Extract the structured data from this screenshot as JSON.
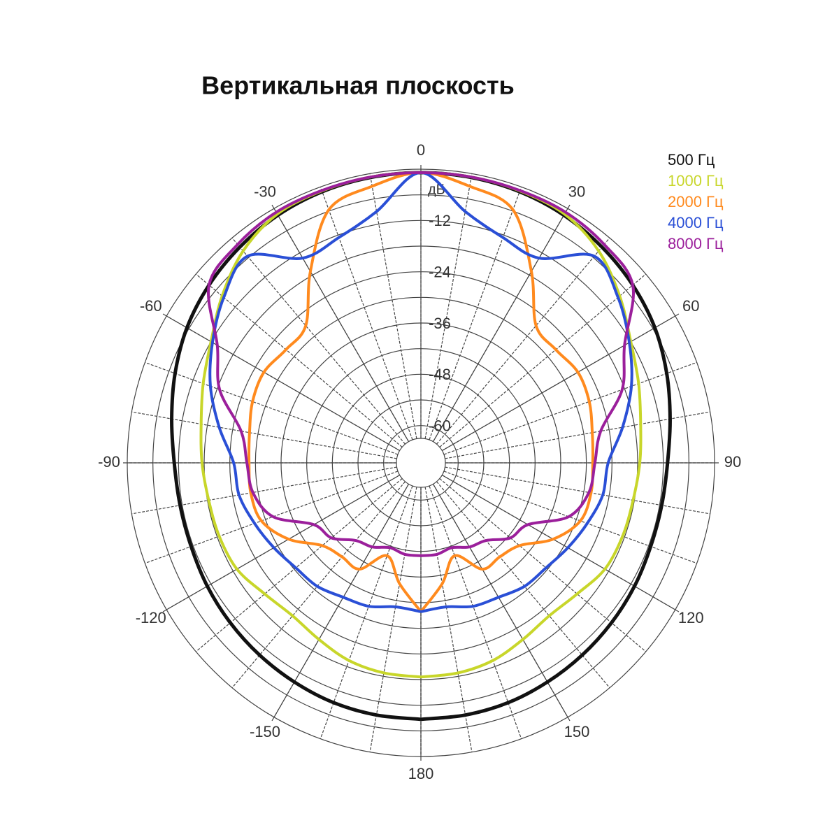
{
  "chart_data": {
    "type": "polar",
    "title": "Вертикальная плоскость",
    "r_unit": "дБ",
    "rlim": [
      -63,
      0
    ],
    "rticks": [
      -60,
      -48,
      -36,
      -24,
      -12
    ],
    "rminor": [
      -54,
      -42,
      -30,
      -18,
      -6
    ],
    "thetaticks": [
      0,
      30,
      60,
      90,
      120,
      150,
      180,
      -150,
      -120,
      -90,
      -60,
      -30
    ],
    "theta": [
      -180,
      -170,
      -160,
      -150,
      -140,
      -130,
      -120,
      -110,
      -100,
      -90,
      -80,
      -70,
      -60,
      -50,
      -40,
      -30,
      -20,
      -10,
      0,
      10,
      20,
      30,
      40,
      50,
      60,
      70,
      80,
      90,
      100,
      110,
      120,
      130,
      140,
      150,
      160,
      170,
      180
    ],
    "series": [
      {
        "name": "500 Гц",
        "color": "#111111",
        "values": [
          -8.7,
          -8.8,
          -9,
          -9.5,
          -10,
          -10.5,
          -11,
          -11.5,
          -11.5,
          -11,
          -9.5,
          -7.5,
          -5.5,
          -4,
          -2.8,
          -1.8,
          -1.2,
          -0.9,
          -0.8,
          -0.9,
          -1.2,
          -1.8,
          -2.8,
          -4,
          -5.5,
          -7.5,
          -9.5,
          -11,
          -11.5,
          -11.5,
          -11,
          -10.5,
          -10,
          -9.5,
          -9,
          -8.8,
          -8.7
        ]
      },
      {
        "name": "1000 Гц",
        "color": "#c8d62a",
        "values": [
          -18.6,
          -18.8,
          -19.5,
          -21,
          -22,
          -21,
          -19,
          -18.5,
          -18.3,
          -17.5,
          -16.5,
          -14.5,
          -12,
          -8,
          -4,
          -1.5,
          -1,
          -0.8,
          -0.8,
          -0.8,
          -1,
          -1.5,
          -4,
          -8,
          -12,
          -14.5,
          -16.5,
          -17.5,
          -18.3,
          -18.5,
          -19,
          -21,
          -22,
          -21,
          -19.5,
          -18.8,
          -18.6
        ]
      },
      {
        "name": "2000 Гц",
        "color": "#ff8a1e",
        "values": [
          -33.9,
          -40,
          -45.6,
          -40,
          -40,
          -38.6,
          -33,
          -29,
          -28.3,
          -28.5,
          -28,
          -26.8,
          -26.3,
          -27.5,
          -26.8,
          -17,
          -5.7,
          -3,
          -0.8,
          -3,
          -5.7,
          -17,
          -26.8,
          -27.5,
          -26.3,
          -26.8,
          -28,
          -28.5,
          -28.3,
          -29,
          -33,
          -38.6,
          -40,
          -40,
          -45.6,
          -40,
          -33.9
        ]
      },
      {
        "name": "4000 Гц",
        "color": "#2a4fd6",
        "values": [
          -33.9,
          -34.5,
          -33,
          -32.4,
          -31,
          -30.5,
          -29,
          -27.3,
          -25.5,
          -24.9,
          -20.8,
          -16.3,
          -12.4,
          -8.5,
          -5.6,
          -13.4,
          -12.6,
          -9,
          -0.8,
          -9,
          -12.6,
          -13.4,
          -5.6,
          -8.5,
          -12.4,
          -16.3,
          -20.8,
          -24.9,
          -25.5,
          -27.3,
          -29,
          -30.5,
          -31,
          -32.4,
          -33,
          -34.5,
          -33.9
        ]
      },
      {
        "name": "8000 Гц",
        "color": "#9b1f9b",
        "values": [
          -47,
          -47,
          -47.6,
          -46,
          -45,
          -41.4,
          -39.8,
          -31.9,
          -28.8,
          -28,
          -26,
          -18.6,
          -13.7,
          -4,
          -2,
          -1,
          -0.9,
          -0.8,
          -0.8,
          -0.8,
          -0.9,
          -1,
          -2,
          -4,
          -13.7,
          -18.6,
          -26,
          -28,
          -28.8,
          -31.9,
          -39.8,
          -41.4,
          -45,
          -46,
          -47.6,
          -47,
          -47
        ]
      }
    ]
  }
}
